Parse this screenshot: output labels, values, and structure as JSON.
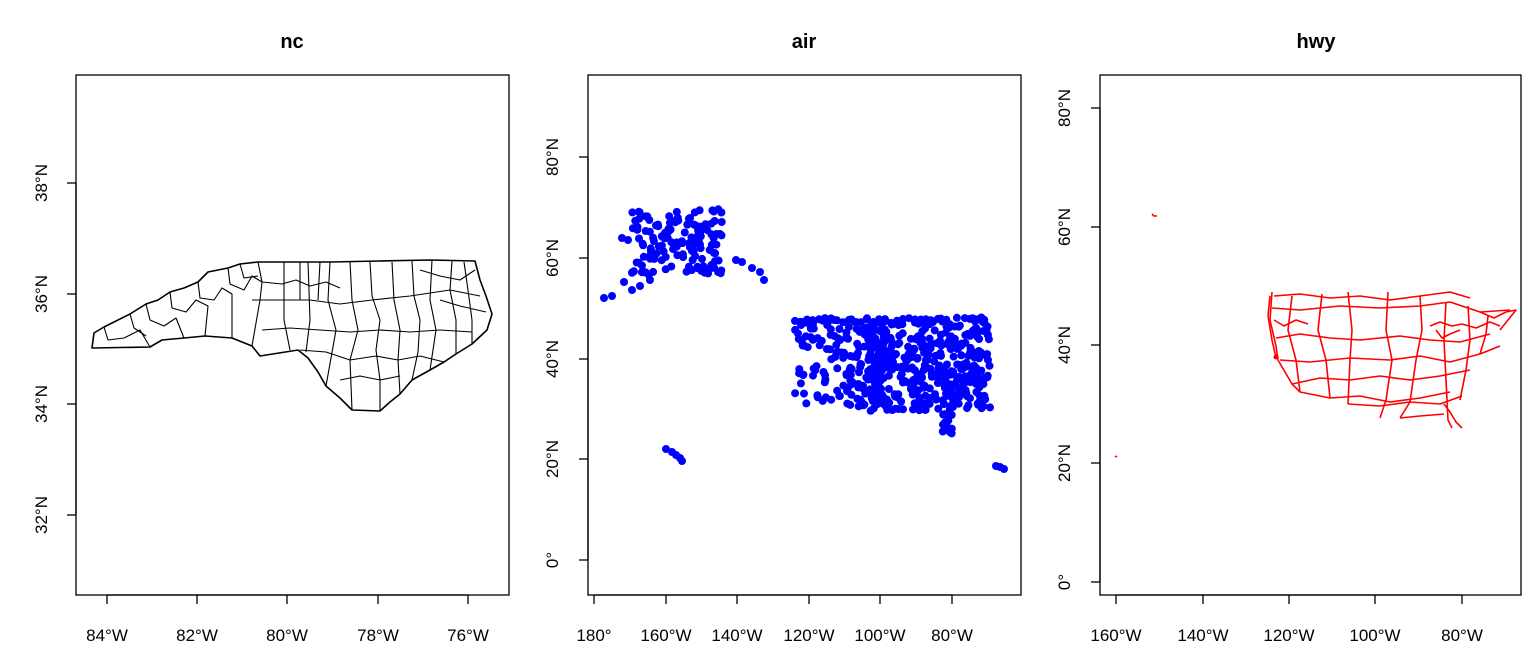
{
  "panels": [
    {
      "title": "nc",
      "x_ticks": [
        "84°W",
        "82°W",
        "80°W",
        "78°W",
        "76°W"
      ],
      "y_ticks": [
        "32°N",
        "34°N",
        "36°N",
        "38°N"
      ],
      "mark_color": "#000000",
      "kind": "polygon"
    },
    {
      "title": "air",
      "x_ticks": [
        "180°",
        "160°W",
        "140°W",
        "120°W",
        "100°W",
        "80°W"
      ],
      "y_ticks": [
        "0°",
        "20°N",
        "40°N",
        "60°N",
        "80°N"
      ],
      "mark_color": "#0000ff",
      "kind": "points"
    },
    {
      "title": "hwy",
      "x_ticks": [
        "160°W",
        "140°W",
        "120°W",
        "100°W",
        "80°W"
      ],
      "y_ticks": [
        "0°",
        "20°N",
        "40°N",
        "60°N",
        "80°N"
      ],
      "mark_color": "#ff0000",
      "kind": "lines"
    }
  ]
}
